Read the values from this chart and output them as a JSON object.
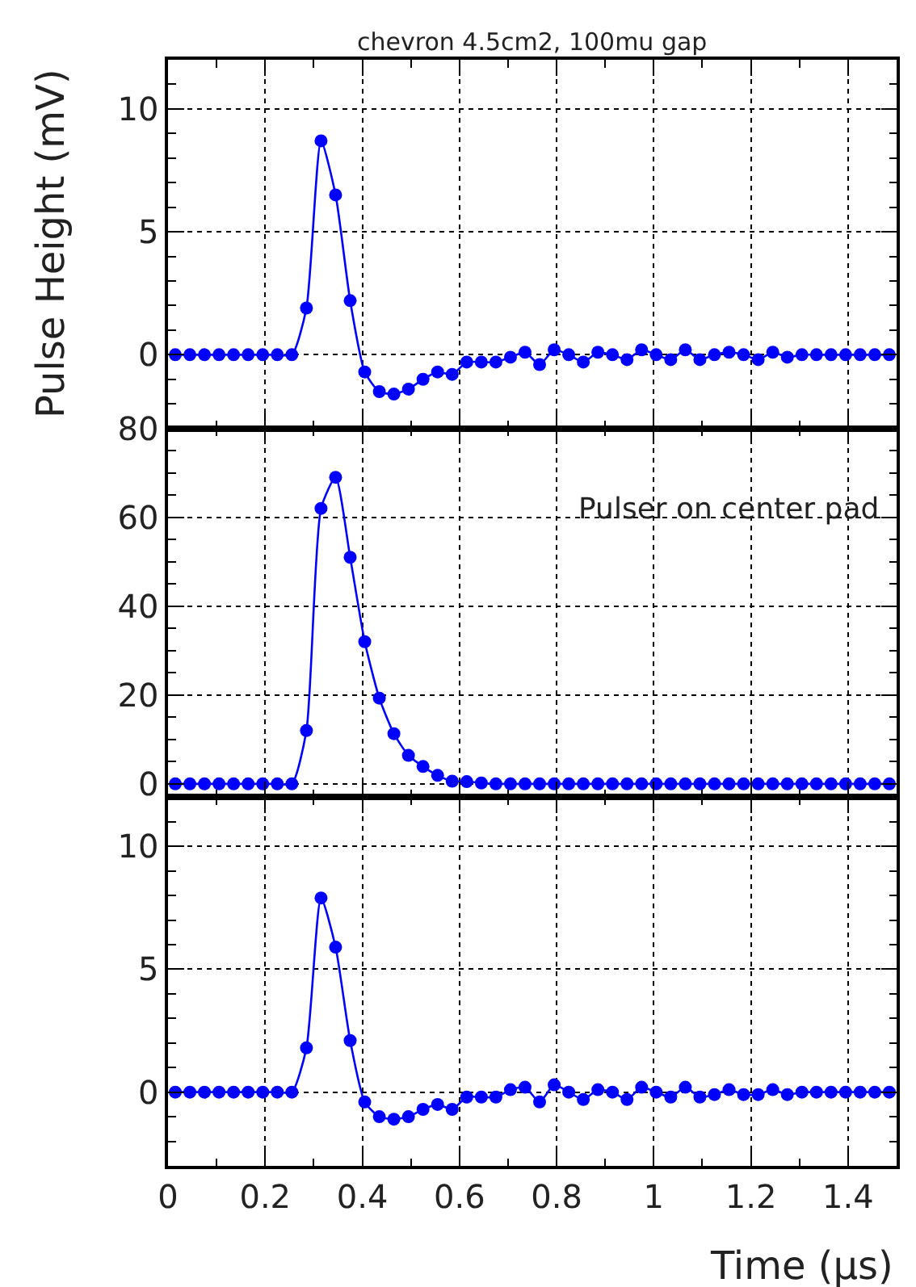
{
  "chart_data": [
    {
      "type": "line",
      "title": "chevron 4.5cm2, 100mu gap",
      "ylabel": "Pulse Height (mV)",
      "x": [
        0.015,
        0.045,
        0.075,
        0.105,
        0.135,
        0.165,
        0.195,
        0.225,
        0.255,
        0.285,
        0.315,
        0.345,
        0.375,
        0.405,
        0.435,
        0.465,
        0.495,
        0.525,
        0.555,
        0.585,
        0.615,
        0.645,
        0.675,
        0.705,
        0.735,
        0.765,
        0.795,
        0.825,
        0.855,
        0.885,
        0.915,
        0.945,
        0.975,
        1.005,
        1.035,
        1.065,
        1.095,
        1.125,
        1.155,
        1.185,
        1.215,
        1.245,
        1.275,
        1.305,
        1.335,
        1.365,
        1.395,
        1.425,
        1.455,
        1.485
      ],
      "series": [
        {
          "color": "#0000ff",
          "values": [
            0,
            0,
            0,
            0,
            0,
            0,
            0,
            0,
            0,
            1.9,
            8.7,
            6.5,
            2.2,
            -0.7,
            -1.5,
            -1.6,
            -1.4,
            -1.0,
            -0.7,
            -0.8,
            -0.3,
            -0.3,
            -0.3,
            -0.1,
            0.1,
            -0.4,
            0.2,
            0,
            -0.3,
            0.1,
            0,
            -0.2,
            0.2,
            0,
            -0.2,
            0.2,
            -0.2,
            0,
            0.1,
            0,
            -0.2,
            0.1,
            -0.1,
            0,
            0,
            0,
            0,
            0,
            0,
            0
          ]
        }
      ],
      "xlim": [
        0,
        1.5
      ],
      "ylim": [
        -3,
        12
      ],
      "yticks": [
        0,
        5,
        10
      ],
      "grid": true,
      "marker": "circle",
      "line_style": "solid",
      "tick_labels": "y"
    },
    {
      "type": "line",
      "annotations": [
        "Pulser on center pad"
      ],
      "x": [
        0.015,
        0.045,
        0.075,
        0.105,
        0.135,
        0.165,
        0.195,
        0.225,
        0.255,
        0.285,
        0.315,
        0.345,
        0.375,
        0.405,
        0.435,
        0.465,
        0.495,
        0.525,
        0.555,
        0.585,
        0.615,
        0.645,
        0.675,
        0.705,
        0.735,
        0.765,
        0.795,
        0.825,
        0.855,
        0.885,
        0.915,
        0.945,
        0.975,
        1.005,
        1.035,
        1.065,
        1.095,
        1.125,
        1.155,
        1.185,
        1.215,
        1.245,
        1.275,
        1.305,
        1.335,
        1.365,
        1.395,
        1.425,
        1.455,
        1.485
      ],
      "series": [
        {
          "color": "#0000ff",
          "values": [
            0,
            0,
            0,
            0,
            0,
            0,
            0,
            0,
            0,
            12,
            62,
            69,
            51,
            32,
            19.3,
            11.3,
            6.4,
            3.9,
            1.9,
            0.6,
            0.5,
            0.2,
            0,
            0,
            0,
            0,
            0,
            0,
            0,
            0,
            0,
            0,
            0,
            0,
            0,
            0,
            0,
            0,
            0,
            0,
            0,
            0,
            0,
            0,
            0,
            0,
            0,
            0,
            0,
            0
          ]
        }
      ],
      "xlim": [
        0,
        1.5
      ],
      "ylim": [
        -3,
        80
      ],
      "yticks": [
        0,
        20,
        40,
        60,
        80
      ],
      "grid": true,
      "marker": "circle",
      "line_style": "solid",
      "tick_labels": "y"
    },
    {
      "type": "line",
      "xlabel": "Time (µs)",
      "x": [
        0.015,
        0.045,
        0.075,
        0.105,
        0.135,
        0.165,
        0.195,
        0.225,
        0.255,
        0.285,
        0.315,
        0.345,
        0.375,
        0.405,
        0.435,
        0.465,
        0.495,
        0.525,
        0.555,
        0.585,
        0.615,
        0.645,
        0.675,
        0.705,
        0.735,
        0.765,
        0.795,
        0.825,
        0.855,
        0.885,
        0.915,
        0.945,
        0.975,
        1.005,
        1.035,
        1.065,
        1.095,
        1.125,
        1.155,
        1.185,
        1.215,
        1.245,
        1.275,
        1.305,
        1.335,
        1.365,
        1.395,
        1.425,
        1.455,
        1.485
      ],
      "series": [
        {
          "color": "#0000ff",
          "values": [
            0,
            0,
            0,
            0,
            0,
            0,
            0,
            0,
            0,
            1.8,
            7.9,
            5.9,
            2.1,
            -0.4,
            -1.0,
            -1.1,
            -1.0,
            -0.7,
            -0.5,
            -0.7,
            -0.2,
            -0.2,
            -0.2,
            0.1,
            0.2,
            -0.4,
            0.3,
            0,
            -0.3,
            0.1,
            0,
            -0.3,
            0.2,
            0,
            -0.2,
            0.2,
            -0.2,
            -0.1,
            0.1,
            -0.1,
            -0.1,
            0.1,
            -0.1,
            0,
            0,
            0,
            0,
            0,
            0,
            0
          ]
        }
      ],
      "xlim": [
        0,
        1.5
      ],
      "xticks": [
        0,
        0.2,
        0.4,
        0.6,
        0.8,
        1,
        1.2,
        1.4
      ],
      "ylim": [
        -3,
        12
      ],
      "yticks": [
        0,
        5,
        10
      ],
      "grid": true,
      "marker": "circle",
      "line_style": "solid"
    }
  ]
}
